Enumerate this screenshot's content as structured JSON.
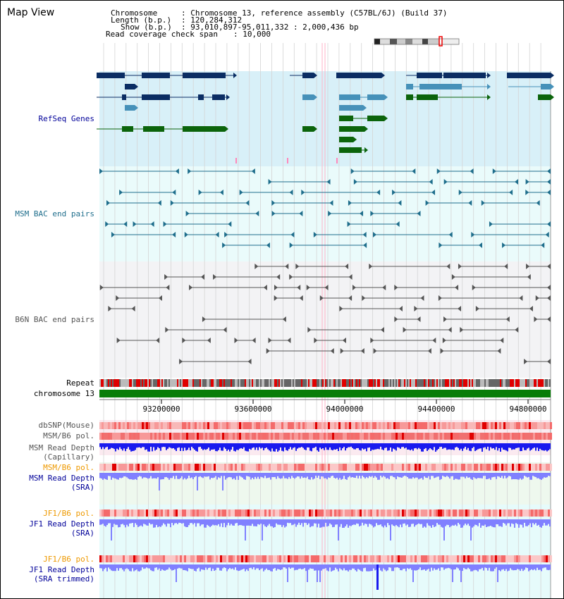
{
  "view_title": "Map View",
  "header": {
    "chromosome_key": "Chromosome",
    "chromosome_val": ": Chromosome 13, reference assembly (C57BL/6J) (Build 37)",
    "length_key": "Length (b.p.)",
    "length_val": ": 120,284,312",
    "show_key": "Show (b.p.)",
    "show_val": ": 93,010,897-95,011,332 : 2,000,436 bp",
    "span_key": "Read coverage check span",
    "span_val": ": 10,000"
  },
  "tracks": {
    "refseq": "RefSeq Genes",
    "msm_bac": "MSM BAC end pairs",
    "b6n_bac": "B6N BAC end pairs",
    "repeat": "Repeat",
    "chromosome": "chromosome 13",
    "dbsnp": "dbSNP(Mouse)",
    "b6_pol": "MSM/B6 pol.",
    "msm_depth_cap_1": "MSM Read Depth",
    "msm_depth_cap_2": "(Capillary)",
    "msm_b6_pol": "MSM/B6 pol.",
    "msm_depth_sra_1": "MSM Read Depth",
    "msm_depth_sra_2": "(SRA)",
    "jf1_b6_pol_1": "JF1/B6 pol.",
    "jf1_depth_sra_1": "JF1 Read Depth",
    "jf1_depth_sra_2": "(SRA)",
    "jf1_b6_pol_2": "JF1/B6 pol.",
    "jf1_depth_trim_1": "JF1 Read Depth",
    "jf1_depth_trim_2": "(SRA trimmed)"
  },
  "axis": {
    "ticks": [
      "93200000",
      "93600000",
      "94000000",
      "94400000",
      "94800000"
    ]
  },
  "colors": {
    "refseq_dark": "#0b2d63",
    "refseq_mid": "#4691b9",
    "refseq_green": "#0b640b",
    "msm_line": "#1f6e8c",
    "b6n_line": "#555555",
    "depth_blue": "#1a1aee",
    "depth_light": "#8080ff",
    "pol_red": "#e00000",
    "orange_label": "#ee9900",
    "blue_label": "#000099"
  }
}
